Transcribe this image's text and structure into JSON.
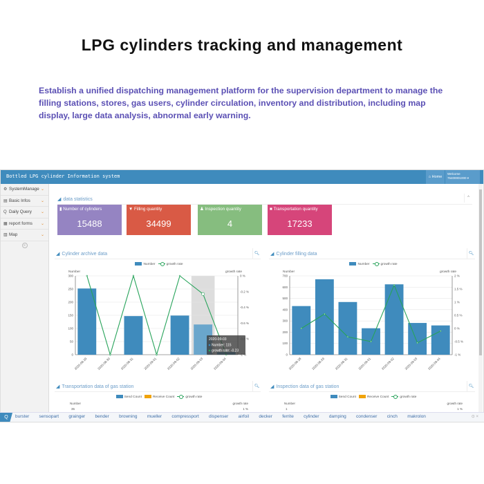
{
  "header": {
    "title": "LPG cylinders tracking and management",
    "subtitle": "Establish a unified dispatching management platform for the supervision department to manage the filling stations, stores, gas users, cylinder circulation, inventory and distribution, including map display, large data analysis, abnormal early warning."
  },
  "app": {
    "title": "Bottled LPG cylinder Information system",
    "home": "Home",
    "welcome": "Welcome",
    "user": "76400001000"
  },
  "sidebar": {
    "items": [
      {
        "label": "SystemManage",
        "icon": "gears-icon"
      },
      {
        "label": "Basic Infos",
        "icon": "database-icon"
      },
      {
        "label": "Daily Query",
        "icon": "search-icon"
      },
      {
        "label": "report forms",
        "icon": "table-icon"
      },
      {
        "label": "Map",
        "icon": "map-icon"
      }
    ]
  },
  "stats": {
    "title": "data statistics",
    "cards": [
      {
        "label": "Number of cylinders",
        "value": "15488",
        "color": "#9584c2",
        "icon": "cylinder-icon"
      },
      {
        "label": "Filling quantity",
        "value": "34499",
        "color": "#d95a45",
        "icon": "filter-icon"
      },
      {
        "label": "Inspection quantity",
        "value": "4",
        "color": "#86bd7f",
        "icon": "user-icon"
      },
      {
        "label": "Transportation quantity",
        "value": "17233",
        "color": "#d6457a",
        "icon": "truck-icon"
      }
    ]
  },
  "panels": {
    "archive": "Cylinder archive data",
    "filling": "Cylinder filling data",
    "transport": "Transportation data of gas station",
    "inspection": "Inspection data of gas station"
  },
  "legend": {
    "number": "Number",
    "growth": "growth rate",
    "send": "Send Count",
    "receive": "Receive Count"
  },
  "colors": {
    "bar": "#3f8bbd",
    "line": "#27a35a",
    "receive": "#f0a30a",
    "topbar": "#3f8bbd"
  },
  "tooltip": {
    "date": "2020-09-03",
    "number": "Number: 115",
    "growth": "growth rate: -0.23"
  },
  "bottom_axes": {
    "transport": {
      "left_top": "35",
      "right_top": "1 %"
    },
    "inspection": {
      "left_top": "1",
      "right_top": "1 %"
    }
  },
  "chart_data": [
    {
      "type": "bar",
      "title": "Cylinder archive data",
      "ylabel": "Number",
      "y2label": "growth rate",
      "categories": [
        "2020-08-29",
        "2020-08-30",
        "2020-08-31",
        "2020-09-01",
        "2020-09-02",
        "2020-09-03",
        "2020-09-04"
      ],
      "ylim": [
        0,
        300
      ],
      "yticks": [
        "0",
        "50",
        "100",
        "150",
        "200",
        "250",
        "300"
      ],
      "y2lim": [
        -1,
        0
      ],
      "y2ticks": [
        "-1 %",
        "-0.8 %",
        "-0.6 %",
        "-0.4 %",
        "-0.2 %",
        "0 %"
      ],
      "series": [
        {
          "name": "Number",
          "type": "bar",
          "values": [
            252,
            0,
            147,
            0,
            149,
            115,
            10
          ]
        },
        {
          "name": "growth rate",
          "type": "line",
          "axis": "right",
          "values": [
            0,
            -1,
            0,
            -1,
            0,
            -0.23,
            -1
          ]
        }
      ],
      "highlight": "2020-09-03",
      "legend": "top-center"
    },
    {
      "type": "bar",
      "title": "Cylinder filling data",
      "ylabel": "Number",
      "y2label": "growth rate",
      "categories": [
        "2020-08-28",
        "2020-08-29",
        "2020-08-31",
        "2020-09-01",
        "2020-09-02",
        "2020-09-03",
        "2020-09-04"
      ],
      "ylim": [
        0,
        700
      ],
      "yticks": [
        "0",
        "100",
        "200",
        "300",
        "400",
        "500",
        "600",
        "700"
      ],
      "y2lim": [
        -1,
        2
      ],
      "y2ticks": [
        "-1 %",
        "-0.5 %",
        "0 %",
        "0.5 %",
        "1 %",
        "1.5 %",
        "2 %"
      ],
      "series": [
        {
          "name": "Number",
          "type": "bar",
          "values": [
            432,
            670,
            468,
            235,
            625,
            282,
            260
          ]
        },
        {
          "name": "growth rate",
          "type": "line",
          "axis": "right",
          "values": [
            0,
            0.55,
            -0.32,
            -0.5,
            1.65,
            -0.55,
            -0.1
          ]
        }
      ],
      "legend": "top-center"
    }
  ],
  "search": {
    "tags": [
      "burster",
      "sensopart",
      "grainger",
      "bender",
      "browning",
      "mueller",
      "compressport",
      "dispenser",
      "airfoil",
      "decker",
      "ferrite",
      "cylinder",
      "damping",
      "condenser",
      "cinch",
      "makrolon"
    ]
  }
}
